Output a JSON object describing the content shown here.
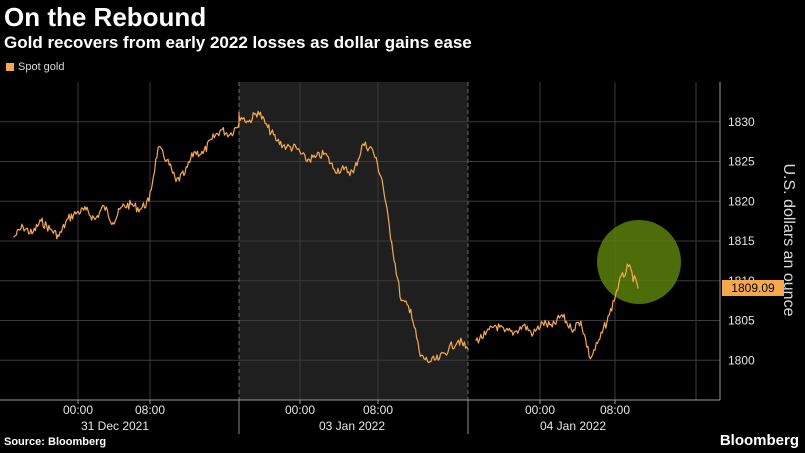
{
  "header": {
    "title": "On the Rebound",
    "subtitle": "Gold recovers from early 2022 losses as dollar gains ease"
  },
  "footer": {
    "source": "Source: Bloomberg",
    "brand": "Bloomberg"
  },
  "colors": {
    "line": "#f6a94b",
    "shade": "#1f1f1f",
    "highlight": "#5a7f0c",
    "background": "#000000"
  },
  "chart_data": {
    "type": "line",
    "title": "On the Rebound",
    "subtitle": "Gold recovers from early 2022 losses as dollar gains ease",
    "ylabel": "U.S. dollars an ounce",
    "ylim": [
      1795,
      1835
    ],
    "y_ticks": [
      1800,
      1805,
      1810,
      1815,
      1820,
      1825,
      1830
    ],
    "legend": [
      "Spot gold"
    ],
    "legend_position": "top-left",
    "grid": true,
    "last_value_label": "1809.09",
    "x_time_ticks": [
      "00:00",
      "08:00",
      "00:00",
      "08:00",
      "00:00",
      "08:00"
    ],
    "x_date_labels": [
      "31 Dec 2021",
      "03 Jan 2022",
      "04 Jan 2022"
    ],
    "series": [
      {
        "name": "Spot gold",
        "points": [
          [
            "2021-12-30 20:00",
            1815.5
          ],
          [
            "2021-12-30 21:00",
            1816.8
          ],
          [
            "2021-12-30 22:00",
            1815.9
          ],
          [
            "2021-12-30 23:00",
            1817.5
          ],
          [
            "2021-12-31 00:00",
            1816.5
          ],
          [
            "2021-12-31 01:00",
            1815.6
          ],
          [
            "2021-12-31 02:00",
            1817.8
          ],
          [
            "2021-12-31 03:00",
            1818.6
          ],
          [
            "2021-12-31 04:00",
            1818.9
          ],
          [
            "2021-12-31 05:00",
            1817.7
          ],
          [
            "2021-12-31 06:00",
            1819.4
          ],
          [
            "2021-12-31 07:00",
            1817.3
          ],
          [
            "2021-12-31 08:00",
            1819.3
          ],
          [
            "2021-12-31 09:00",
            1819.6
          ],
          [
            "2021-12-31 10:00",
            1819.0
          ],
          [
            "2021-12-31 11:00",
            1820.0
          ],
          [
            "2021-12-31 12:00",
            1826.7
          ],
          [
            "2021-12-31 13:00",
            1825.2
          ],
          [
            "2021-12-31 14:00",
            1822.5
          ],
          [
            "2021-12-31 15:00",
            1823.5
          ],
          [
            "2021-12-31 16:00",
            1826.2
          ],
          [
            "2021-12-31 17:00",
            1826.0
          ],
          [
            "2021-12-31 18:00",
            1827.8
          ],
          [
            "2021-12-31 19:00",
            1829.0
          ],
          [
            "2021-12-31 20:00",
            1828.4
          ],
          [
            "2021-12-31 21:00",
            1829.8
          ],
          [
            "2022-01-02 23:00",
            1830.8
          ],
          [
            "2022-01-03 00:00",
            1830.0
          ],
          [
            "2022-01-03 01:00",
            1831.3
          ],
          [
            "2022-01-03 02:00",
            1829.3
          ],
          [
            "2022-01-03 03:00",
            1827.6
          ],
          [
            "2022-01-03 04:00",
            1826.8
          ],
          [
            "2022-01-03 05:00",
            1826.7
          ],
          [
            "2022-01-03 06:00",
            1825.2
          ],
          [
            "2022-01-03 07:00",
            1825.5
          ],
          [
            "2022-01-03 08:00",
            1826.0
          ],
          [
            "2022-01-03 09:00",
            1824.0
          ],
          [
            "2022-01-03 10:00",
            1824.0
          ],
          [
            "2022-01-03 11:00",
            1823.6
          ],
          [
            "2022-01-03 12:00",
            1827.2
          ],
          [
            "2022-01-03 13:00",
            1826.5
          ],
          [
            "2022-01-03 14:00",
            1822.7
          ],
          [
            "2022-01-03 15:00",
            1814.8
          ],
          [
            "2022-01-03 16:00",
            1807.5
          ],
          [
            "2022-01-03 17:00",
            1806.4
          ],
          [
            "2022-01-03 18:00",
            1800.5
          ],
          [
            "2022-01-03 19:00",
            1799.8
          ],
          [
            "2022-01-03 20:00",
            1800.2
          ],
          [
            "2022-01-03 21:00",
            1801.5
          ],
          [
            "2022-01-03 22:00",
            1802.5
          ],
          [
            "2022-01-03 23:00",
            1801.4
          ],
          [
            "2022-01-04 00:00",
            1802.5
          ],
          [
            "2022-01-04 01:00",
            1803.2
          ],
          [
            "2022-01-04 02:00",
            1804.4
          ],
          [
            "2022-01-04 03:00",
            1803.6
          ],
          [
            "2022-01-04 04:00",
            1803.5
          ],
          [
            "2022-01-04 05:00",
            1804.4
          ],
          [
            "2022-01-04 06:00",
            1803.3
          ],
          [
            "2022-01-04 07:00",
            1804.7
          ],
          [
            "2022-01-04 08:00",
            1804.2
          ],
          [
            "2022-01-04 09:00",
            1805.7
          ],
          [
            "2022-01-04 10:00",
            1803.9
          ],
          [
            "2022-01-04 11:00",
            1804.9
          ],
          [
            "2022-01-04 12:00",
            1800.2
          ],
          [
            "2022-01-04 13:00",
            1802.7
          ],
          [
            "2022-01-04 14:00",
            1805.7
          ],
          [
            "2022-01-04 15:00",
            1809.7
          ],
          [
            "2022-01-04 16:00",
            1811.8
          ],
          [
            "2022-01-04 17:00",
            1809.09
          ]
        ]
      }
    ]
  }
}
